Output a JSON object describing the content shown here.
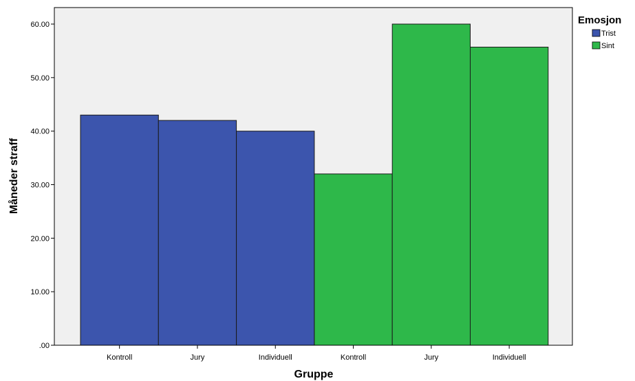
{
  "chart_data": {
    "type": "bar",
    "xlabel": "Gruppe",
    "ylabel": "Måneder straff",
    "ylim": [
      0,
      60
    ],
    "yticks": [
      ".00",
      "10.00",
      "20.00",
      "30.00",
      "40.00",
      "50.00",
      "60.00"
    ],
    "categories": [
      "Kontroll",
      "Jury",
      "Individuell",
      "Kontroll",
      "Jury",
      "Individuell"
    ],
    "bar_series": [
      "Trist",
      "Trist",
      "Trist",
      "Sint",
      "Sint",
      "Sint"
    ],
    "values": [
      43.0,
      42.0,
      40.0,
      32.0,
      60.0,
      55.7
    ],
    "legend": {
      "title": "Emosjon",
      "placement": "top-right",
      "items": [
        {
          "name": "Trist",
          "color": "#3c55ad"
        },
        {
          "name": "Sint",
          "color": "#2eb84a"
        }
      ]
    },
    "plot_background": "#f0f0f0",
    "grid": false
  }
}
